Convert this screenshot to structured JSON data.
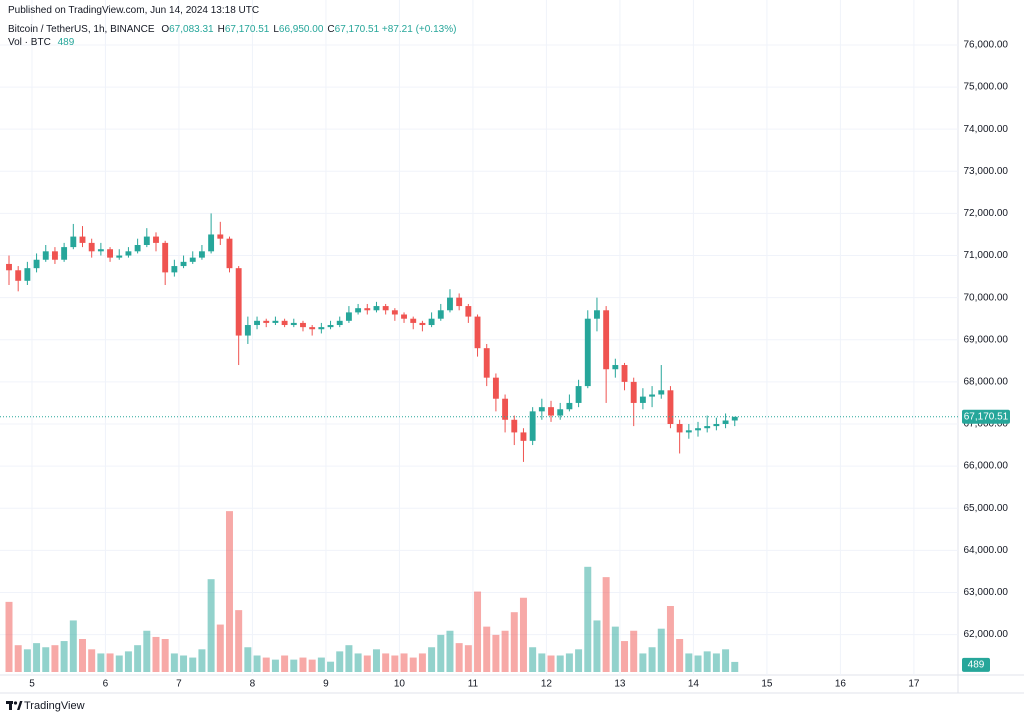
{
  "header": {
    "published": "Published on TradingView.com, Jun 14, 2024 13:18 UTC",
    "symbol": "Bitcoin / TetherUS, 1h, BINANCE",
    "ohlc": [
      {
        "label": "O",
        "value": "67,083.31"
      },
      {
        "label": "H",
        "value": "67,170.51"
      },
      {
        "label": "L",
        "value": "66,950.00"
      },
      {
        "label": "C",
        "value": "67,170.51"
      }
    ],
    "change": "+87.21 (+0.13%)",
    "volume_label": "Vol · BTC",
    "volume_value": "489"
  },
  "footer_logo": "TradingView",
  "chart_data": {
    "type": "candlestick",
    "up_color": "#26a69a",
    "down_color": "#ef5350",
    "grid": true,
    "xlim": [
      4.565,
      17.6
    ],
    "xticks": [
      5,
      6,
      7,
      8,
      9,
      10,
      11,
      12,
      13,
      14,
      15,
      16,
      17
    ],
    "ylim": [
      61040,
      76640
    ],
    "yticks": [
      {
        "value": 62000,
        "label": "62,000.00"
      },
      {
        "value": 63000,
        "label": "63,000.00"
      },
      {
        "value": 64000,
        "label": "64,000.00"
      },
      {
        "value": 65000,
        "label": "65,000.00"
      },
      {
        "value": 66000,
        "label": "66,000.00"
      },
      {
        "value": 67000,
        "label": "67,000.00"
      },
      {
        "value": 68000,
        "label": "68,000.00"
      },
      {
        "value": 69000,
        "label": "69,000.00"
      },
      {
        "value": 70000,
        "label": "70,000.00"
      },
      {
        "value": 71000,
        "label": "71,000.00"
      },
      {
        "value": 72000,
        "label": "72,000.00"
      },
      {
        "value": 73000,
        "label": "73,000.00"
      },
      {
        "value": 74000,
        "label": "74,000.00"
      },
      {
        "value": 75000,
        "label": "75,000.00"
      },
      {
        "value": 76000,
        "label": "76,000.00"
      }
    ],
    "vlim": [
      0,
      8000
    ],
    "x": [
      4.6875,
      4.8125,
      4.9375,
      5.0625,
      5.1875,
      5.3125,
      5.4375,
      5.5625,
      5.6875,
      5.8125,
      5.9375,
      6.0625,
      6.1875,
      6.3125,
      6.4375,
      6.5625,
      6.6875,
      6.8125,
      6.9375,
      7.0625,
      7.1875,
      7.3125,
      7.4375,
      7.5625,
      7.6875,
      7.8125,
      7.9375,
      8.0625,
      8.1875,
      8.3125,
      8.4375,
      8.5625,
      8.6875,
      8.8125,
      8.9375,
      9.0625,
      9.1875,
      9.3125,
      9.4375,
      9.5625,
      9.6875,
      9.8125,
      9.9375,
      10.0625,
      10.1875,
      10.3125,
      10.4375,
      10.5625,
      10.6875,
      10.8125,
      10.9375,
      11.0625,
      11.1875,
      11.3125,
      11.4375,
      11.5625,
      11.6875,
      11.8125,
      11.9375,
      12.0625,
      12.1875,
      12.3125,
      12.4375,
      12.5625,
      12.6875,
      12.8125,
      12.9375,
      13.0625,
      13.1875,
      13.3125,
      13.4375,
      13.5625,
      13.6875,
      13.8125,
      13.9375,
      14.0625,
      14.1875,
      14.3125,
      14.4375,
      14.5625
    ],
    "open": [
      70800,
      70650,
      70400,
      70700,
      70900,
      71100,
      70900,
      71200,
      71450,
      71300,
      71100,
      71150,
      70950,
      71000,
      71100,
      71250,
      71450,
      71300,
      70600,
      70750,
      70850,
      70950,
      71100,
      71500,
      71400,
      70700,
      69100,
      69350,
      69450,
      69400,
      69450,
      69350,
      69400,
      69300,
      69250,
      69300,
      69350,
      69450,
      69650,
      69750,
      69700,
      69800,
      69700,
      69600,
      69500,
      69400,
      69350,
      69500,
      69700,
      70000,
      69800,
      69550,
      68800,
      68100,
      67600,
      67100,
      66800,
      66600,
      67300,
      67400,
      67200,
      67350,
      67500,
      67900,
      69500,
      69700,
      68300,
      68400,
      68000,
      67500,
      67650,
      67700,
      67800,
      67000,
      66800,
      66850,
      66900,
      66950,
      67000,
      67083.31
    ],
    "high": [
      71000,
      70750,
      70850,
      71050,
      71250,
      71200,
      71300,
      71750,
      71700,
      71400,
      71300,
      71200,
      71150,
      71200,
      71400,
      71650,
      71550,
      71350,
      70900,
      71000,
      71100,
      71250,
      72000,
      71800,
      71450,
      70750,
      69550,
      69550,
      69500,
      69550,
      69500,
      69500,
      69450,
      69350,
      69400,
      69450,
      69550,
      69800,
      69850,
      69850,
      69900,
      69850,
      69750,
      69650,
      69550,
      69450,
      69650,
      69850,
      70200,
      70100,
      69850,
      69600,
      68900,
      68200,
      67700,
      67200,
      66900,
      67400,
      67600,
      67550,
      67500,
      67700,
      68050,
      69700,
      70000,
      69800,
      68550,
      68450,
      68100,
      67850,
      67900,
      68400,
      67900,
      67100,
      67000,
      67050,
      67200,
      67150,
      67250,
      67170.51
    ],
    "low": [
      70300,
      70150,
      70300,
      70600,
      70850,
      70800,
      70850,
      71150,
      71200,
      70950,
      71000,
      70850,
      70900,
      70950,
      71050,
      71200,
      71100,
      70300,
      70500,
      70700,
      70800,
      70900,
      71050,
      71250,
      70600,
      68400,
      68900,
      69250,
      69300,
      69350,
      69300,
      69300,
      69200,
      69100,
      69150,
      69250,
      69300,
      69400,
      69600,
      69600,
      69650,
      69600,
      69450,
      69400,
      69250,
      69200,
      69300,
      69450,
      69650,
      69700,
      69400,
      68600,
      67900,
      67300,
      66800,
      66500,
      66100,
      66500,
      67100,
      67050,
      67100,
      67300,
      67400,
      67850,
      69200,
      67500,
      68100,
      67800,
      66950,
      67350,
      67400,
      67600,
      66900,
      66300,
      66650,
      66700,
      66800,
      66850,
      66900,
      66950
    ],
    "close": [
      70650,
      70400,
      70700,
      70900,
      71100,
      70900,
      71200,
      71450,
      71300,
      71100,
      71150,
      70950,
      71000,
      71100,
      71250,
      71450,
      71300,
      70600,
      70750,
      70850,
      70950,
      71100,
      71500,
      71400,
      70700,
      69100,
      69350,
      69450,
      69400,
      69450,
      69350,
      69400,
      69300,
      69250,
      69300,
      69350,
      69450,
      69650,
      69750,
      69700,
      69800,
      69700,
      69600,
      69500,
      69400,
      69350,
      69500,
      69700,
      70000,
      69800,
      69550,
      68800,
      68100,
      67600,
      67100,
      66800,
      66600,
      67300,
      67400,
      67200,
      67350,
      67500,
      67900,
      69500,
      69700,
      68300,
      68400,
      68000,
      67500,
      67650,
      67700,
      67800,
      67000,
      66800,
      66850,
      66900,
      66950,
      67000,
      67083.31,
      67170.51
    ],
    "volume": [
      3400,
      1300,
      1100,
      1400,
      1200,
      1300,
      1500,
      2500,
      1600,
      1100,
      900,
      900,
      800,
      1000,
      1300,
      2000,
      1700,
      1600,
      900,
      800,
      700,
      1100,
      4500,
      2300,
      7800,
      3000,
      1200,
      800,
      700,
      600,
      800,
      600,
      700,
      600,
      700,
      500,
      1000,
      1300,
      900,
      800,
      1100,
      900,
      800,
      900,
      700,
      900,
      1200,
      1800,
      2000,
      1400,
      1300,
      3900,
      2200,
      1800,
      2000,
      2900,
      3600,
      1200,
      900,
      800,
      800,
      900,
      1100,
      5100,
      2500,
      4600,
      2200,
      1500,
      2000,
      900,
      1200,
      2100,
      3200,
      1600,
      900,
      800,
      1000,
      900,
      1100,
      489
    ]
  }
}
